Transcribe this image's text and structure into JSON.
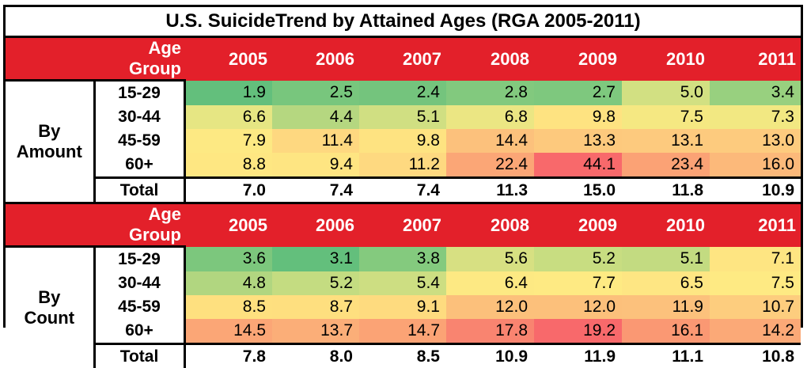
{
  "chart_data": {
    "type": "table",
    "title": "U.S. SuicideTrend by Attained Ages (RGA 2005-2011)",
    "header_label": "Age Group",
    "years": [
      "2005",
      "2006",
      "2007",
      "2008",
      "2009",
      "2010",
      "2011"
    ],
    "sections": [
      {
        "label_line1": "By",
        "label_line2": "Amount",
        "rows": [
          {
            "age": "15-29",
            "values": [
              "1.9",
              "2.5",
              "2.4",
              "2.8",
              "2.7",
              "5.0",
              "3.4"
            ],
            "colors": [
              "#63bf7c",
              "#78c67d",
              "#74c47d",
              "#82c97e",
              "#7ec87e",
              "#d2e082",
              "#98d07f"
            ]
          },
          {
            "age": "30-44",
            "values": [
              "6.6",
              "4.4",
              "5.1",
              "6.8",
              "9.8",
              "7.5",
              "7.3"
            ],
            "colors": [
              "#e6e683",
              "#b5d780",
              "#d0df82",
              "#ebe683",
              "#fee381",
              "#f5e882",
              "#f2e882"
            ]
          },
          {
            "age": "45-59",
            "values": [
              "7.9",
              "11.4",
              "9.8",
              "14.4",
              "13.3",
              "13.1",
              "13.0"
            ],
            "colors": [
              "#fde983",
              "#fed880",
              "#fee381",
              "#fcc17c",
              "#fdc97d",
              "#fdca7e",
              "#fdcb7e"
            ]
          },
          {
            "age": "60+",
            "values": [
              "8.8",
              "9.4",
              "11.2",
              "22.4",
              "44.1",
              "23.4",
              "16.0"
            ],
            "colors": [
              "#fee782",
              "#fee582",
              "#fed980",
              "#fba676",
              "#f8696b",
              "#fba275",
              "#fcb97a"
            ]
          }
        ],
        "total_label": "Total",
        "totals": [
          "7.0",
          "7.4",
          "7.4",
          "11.3",
          "15.0",
          "11.8",
          "10.9"
        ]
      },
      {
        "label_line1": "By",
        "label_line2": "Count",
        "rows": [
          {
            "age": "15-29",
            "values": [
              "3.6",
              "3.1",
              "3.8",
              "5.6",
              "5.2",
              "5.1",
              "7.1"
            ],
            "colors": [
              "#7cc77d",
              "#63bf7c",
              "#84ca7e",
              "#d7e082",
              "#c8dd81",
              "#c3db81",
              "#fee582"
            ]
          },
          {
            "age": "30-44",
            "values": [
              "4.8",
              "5.2",
              "5.4",
              "6.4",
              "7.7",
              "6.5",
              "7.5"
            ],
            "colors": [
              "#b1d680",
              "#c4dc81",
              "#cdde82",
              "#fde983",
              "#feea83",
              "#fee683",
              "#feea83"
            ]
          },
          {
            "age": "45-59",
            "values": [
              "8.5",
              "8.7",
              "9.1",
              "12.0",
              "12.0",
              "11.9",
              "10.7"
            ],
            "colors": [
              "#fee07f",
              "#fedf7f",
              "#fedb7f",
              "#fcc07b",
              "#fcc07b",
              "#fcc17c",
              "#fdcd7e"
            ]
          },
          {
            "age": "60+",
            "values": [
              "14.5",
              "13.7",
              "14.7",
              "17.8",
              "19.2",
              "16.1",
              "14.2"
            ],
            "colors": [
              "#fba676",
              "#fbae78",
              "#fba375",
              "#f98470",
              "#f8696b",
              "#fa9873",
              "#fba977"
            ]
          }
        ],
        "total_label": "Total",
        "totals": [
          "7.8",
          "8.0",
          "8.5",
          "10.9",
          "11.9",
          "11.1",
          "10.8"
        ]
      }
    ]
  }
}
